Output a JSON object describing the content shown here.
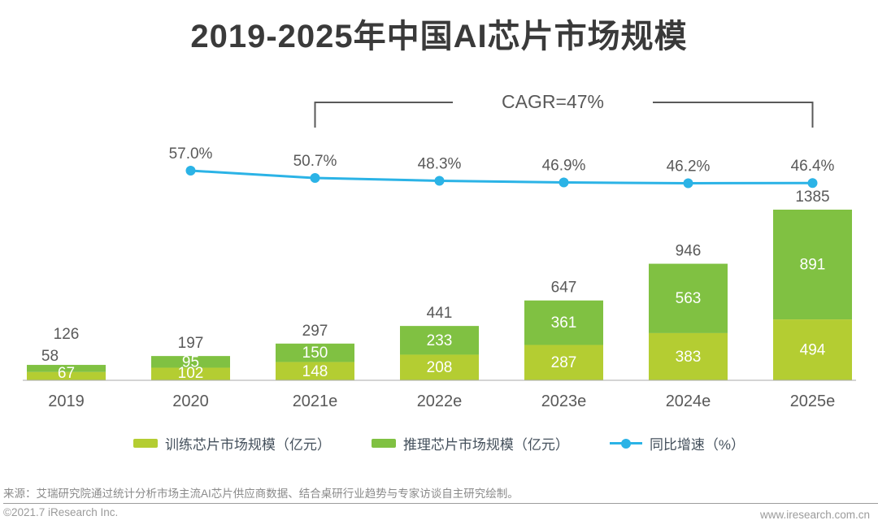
{
  "title": "2019-2025年中国AI芯片市场规模",
  "chart_data": {
    "type": "bar",
    "subtype": "stacked-bar-with-line-overlay",
    "categories": [
      "2019",
      "2020",
      "2021e",
      "2022e",
      "2023e",
      "2024e",
      "2025e"
    ],
    "unit": "亿元",
    "series": [
      {
        "name": "训练芯片市场规模（亿元）",
        "type": "bar",
        "stack_position": "bottom",
        "color": "#b4cd32",
        "values": [
          67,
          102,
          148,
          208,
          287,
          383,
          494
        ]
      },
      {
        "name": "推理芯片市场规模（亿元）",
        "type": "bar",
        "stack_position": "top",
        "color": "#80c142",
        "values": [
          58,
          95,
          150,
          233,
          361,
          563,
          891
        ]
      },
      {
        "name": "同比增速（%）",
        "type": "line",
        "color": "#2bb3e6",
        "values": [
          null,
          57.0,
          50.7,
          48.3,
          46.9,
          46.2,
          46.4
        ],
        "point_labels": [
          "",
          "57.0%",
          "50.7%",
          "48.3%",
          "46.9%",
          "46.2%",
          "46.4%"
        ]
      }
    ],
    "totals": [
      126,
      197,
      297,
      441,
      647,
      946,
      1385
    ],
    "annotation": "CAGR=47%",
    "annotation_span": {
      "from_category": "2021e",
      "to_category": "2025e"
    },
    "value_axis_visible": false,
    "grid": false,
    "legend_position": "bottom",
    "label_color": "#595959",
    "bar_label_color": "#ffffff",
    "axis_line_color": "#aaaaaa"
  },
  "legend": {
    "items": [
      {
        "label": "训练芯片市场规模（亿元）",
        "swatch": "rect",
        "color": "#b4cd32"
      },
      {
        "label": "推理芯片市场规模（亿元）",
        "swatch": "rect",
        "color": "#80c142"
      },
      {
        "label": "同比增速（%）",
        "swatch": "line-dot",
        "color": "#2bb3e6"
      }
    ]
  },
  "footer": {
    "source": "来源：艾瑞研究院通过统计分析市场主流AI芯片供应商数据、结合桌研行业趋势与专家访谈自主研究绘制。",
    "copyright": "©2021.7 iResearch Inc.",
    "website": "www.iresearch.com.cn"
  }
}
